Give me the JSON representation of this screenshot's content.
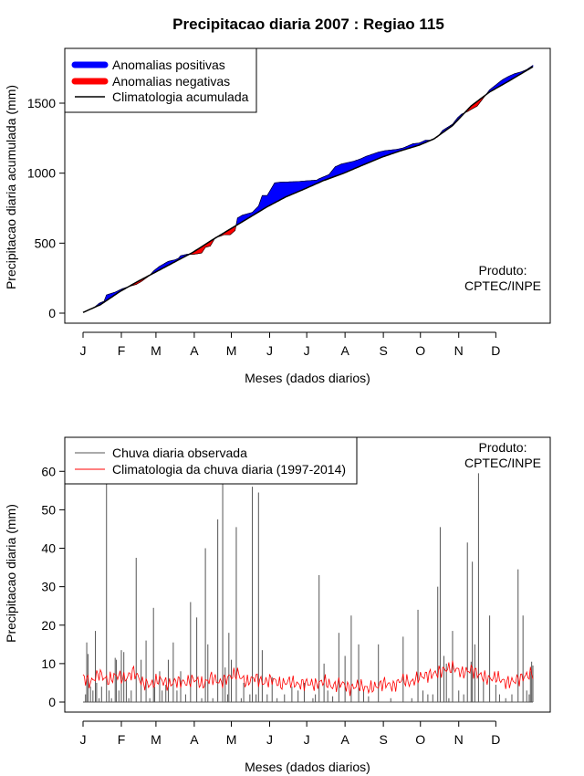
{
  "title": "Precipitacao diaria 2007 : Regiao 115",
  "colors": {
    "positive": "#0000ff",
    "negative": "#ff0000",
    "clim_line": "#000000",
    "obs": "#555555",
    "clim_daily": "#ff0000"
  },
  "chart_data": [
    {
      "type": "area",
      "ylabel": "Precipitacao diaria acumulada (mm)",
      "xlabel": "Meses (dados diarios)",
      "xlim": [
        1,
        365
      ],
      "ylim": [
        0,
        1800
      ],
      "yticks": [
        0,
        500,
        1000,
        1500
      ],
      "months": [
        "J",
        "F",
        "M",
        "A",
        "M",
        "J",
        "J",
        "A",
        "S",
        "O",
        "N",
        "D"
      ],
      "month_days": [
        1,
        32,
        60,
        91,
        121,
        152,
        182,
        213,
        244,
        274,
        305,
        335
      ],
      "legend": [
        "Anomalias positivas",
        "Anomalias negativas",
        "Climatologia acumulada"
      ],
      "annotation": [
        "Produto:",
        "CPTEC/INPE"
      ],
      "climatology_days": [
        1,
        15,
        31,
        45,
        59,
        75,
        90,
        105,
        120,
        135,
        150,
        165,
        181,
        195,
        212,
        228,
        243,
        258,
        273,
        285,
        300,
        315,
        330,
        345,
        365
      ],
      "climatology_values": [
        5,
        60,
        155,
        225,
        290,
        365,
        435,
        520,
        600,
        680,
        760,
        830,
        890,
        945,
        1000,
        1060,
        1115,
        1160,
        1200,
        1245,
        1340,
        1480,
        1580,
        1655,
        1760
      ],
      "observed_days": [
        1,
        10,
        14,
        18,
        20,
        27,
        33,
        40,
        44,
        48,
        55,
        58,
        60,
        63,
        66,
        70,
        75,
        78,
        80,
        85,
        90,
        94,
        97,
        100,
        104,
        108,
        112,
        115,
        120,
        124,
        126,
        130,
        138,
        143,
        146,
        150,
        156,
        160,
        175,
        182,
        190,
        192,
        200,
        205,
        210,
        220,
        225,
        230,
        235,
        240,
        245,
        255,
        260,
        268,
        273,
        278,
        282,
        288,
        292,
        300,
        304,
        307,
        312,
        316,
        320,
        330,
        335,
        340,
        345,
        350,
        356,
        360,
        365
      ],
      "observed_values": [
        5,
        40,
        70,
        85,
        130,
        150,
        175,
        195,
        205,
        225,
        270,
        300,
        315,
        335,
        350,
        370,
        380,
        390,
        410,
        420,
        420,
        425,
        430,
        470,
        480,
        540,
        550,
        560,
        560,
        590,
        680,
        700,
        720,
        765,
        840,
        840,
        930,
        935,
        940,
        945,
        950,
        960,
        990,
        1045,
        1065,
        1085,
        1100,
        1120,
        1135,
        1150,
        1160,
        1170,
        1180,
        1210,
        1215,
        1235,
        1235,
        1260,
        1305,
        1350,
        1395,
        1420,
        1440,
        1460,
        1480,
        1595,
        1630,
        1665,
        1690,
        1710,
        1725,
        1740,
        1770
      ]
    },
    {
      "type": "bar",
      "ylabel": "Precipitacao diaria (mm)",
      "xlabel": "Meses (dados diarios)",
      "xlim": [
        1,
        365
      ],
      "ylim": [
        0,
        66
      ],
      "yticks": [
        0,
        10,
        20,
        30,
        40,
        50,
        60
      ],
      "months": [
        "J",
        "F",
        "M",
        "A",
        "M",
        "J",
        "J",
        "A",
        "S",
        "O",
        "N",
        "D"
      ],
      "month_days": [
        1,
        32,
        60,
        91,
        121,
        152,
        182,
        213,
        244,
        274,
        305,
        335
      ],
      "legend": [
        "Chuva diaria observada",
        "Climatologia da chuva diaria (1997-2014)"
      ],
      "annotation": [
        "Produto:",
        "CPTEC/INPE"
      ],
      "observed_days": [
        3,
        4,
        5,
        7,
        9,
        11,
        12,
        14,
        16,
        20,
        22,
        24,
        27,
        28,
        30,
        32,
        34,
        36,
        38,
        40,
        44,
        48,
        52,
        55,
        58,
        59,
        63,
        65,
        68,
        70,
        74,
        77,
        80,
        84,
        88,
        93,
        97,
        100,
        102,
        106,
        110,
        114,
        116,
        118,
        119,
        121,
        125,
        129,
        131,
        136,
        138,
        141,
        143,
        146,
        150,
        154,
        158,
        164,
        170,
        175,
        180,
        187,
        189,
        192,
        196,
        199,
        203,
        208,
        213,
        218,
        224,
        228,
        232,
        240,
        250,
        260,
        267,
        272,
        276,
        280,
        284,
        288,
        290,
        293,
        295,
        297,
        300,
        305,
        309,
        312,
        315,
        316,
        318,
        321,
        325,
        330,
        335,
        338,
        343,
        348,
        353,
        357,
        360,
        362,
        363,
        364,
        365
      ],
      "observed_values": [
        2,
        15.5,
        12.5,
        4,
        3,
        18.5,
        5,
        1,
        4,
        57.5,
        3,
        1,
        11.5,
        11,
        3,
        13.5,
        13,
        6,
        1,
        3,
        37.5,
        11,
        16,
        1,
        24.5,
        4,
        8,
        3,
        4.5,
        11,
        15.5,
        3,
        8,
        2,
        26,
        22,
        1,
        40,
        15,
        1,
        47.5,
        57.5,
        9,
        2,
        18,
        11,
        45.5,
        1,
        5,
        2,
        56,
        2,
        54.5,
        13.5,
        2,
        6.5,
        1,
        2,
        4,
        3,
        5,
        1,
        2,
        33,
        10,
        3,
        1.5,
        18,
        12,
        22.5,
        15,
        3,
        1.5,
        15,
        1,
        17,
        1,
        24,
        3,
        2,
        2,
        30,
        45.5,
        12,
        10,
        1,
        18.5,
        3,
        2,
        41.5,
        10.5,
        36.5,
        15,
        59.5,
        6,
        22.5,
        4.5,
        2,
        1,
        2,
        34.5,
        22.5,
        3,
        2,
        8,
        10.5,
        9.5,
        6
      ],
      "climatology_days": [
        1,
        7,
        14,
        21,
        28,
        35,
        42,
        49,
        56,
        63,
        70,
        77,
        84,
        91,
        98,
        105,
        112,
        119,
        126,
        133,
        140,
        147,
        154,
        161,
        168,
        175,
        182,
        189,
        196,
        203,
        210,
        217,
        224,
        231,
        238,
        245,
        252,
        259,
        266,
        273,
        280,
        287,
        294,
        301,
        308,
        315,
        322,
        329,
        336,
        343,
        350,
        357,
        365
      ],
      "climatology_values": [
        6.5,
        5,
        7.5,
        5.5,
        7,
        6,
        8,
        5,
        4.5,
        6,
        4.5,
        5.5,
        5,
        6,
        4.5,
        6.5,
        5,
        6.5,
        7.5,
        5,
        6.5,
        5,
        6,
        4.5,
        5.5,
        4.5,
        5,
        4.5,
        5.5,
        4,
        5,
        3.5,
        4.5,
        3.5,
        4,
        5,
        4,
        6,
        5,
        6.5,
        7,
        7.5,
        8.5,
        9,
        7.5,
        8.5,
        7,
        6,
        6.5,
        5,
        5.5,
        6.5,
        7.5
      ]
    }
  ]
}
